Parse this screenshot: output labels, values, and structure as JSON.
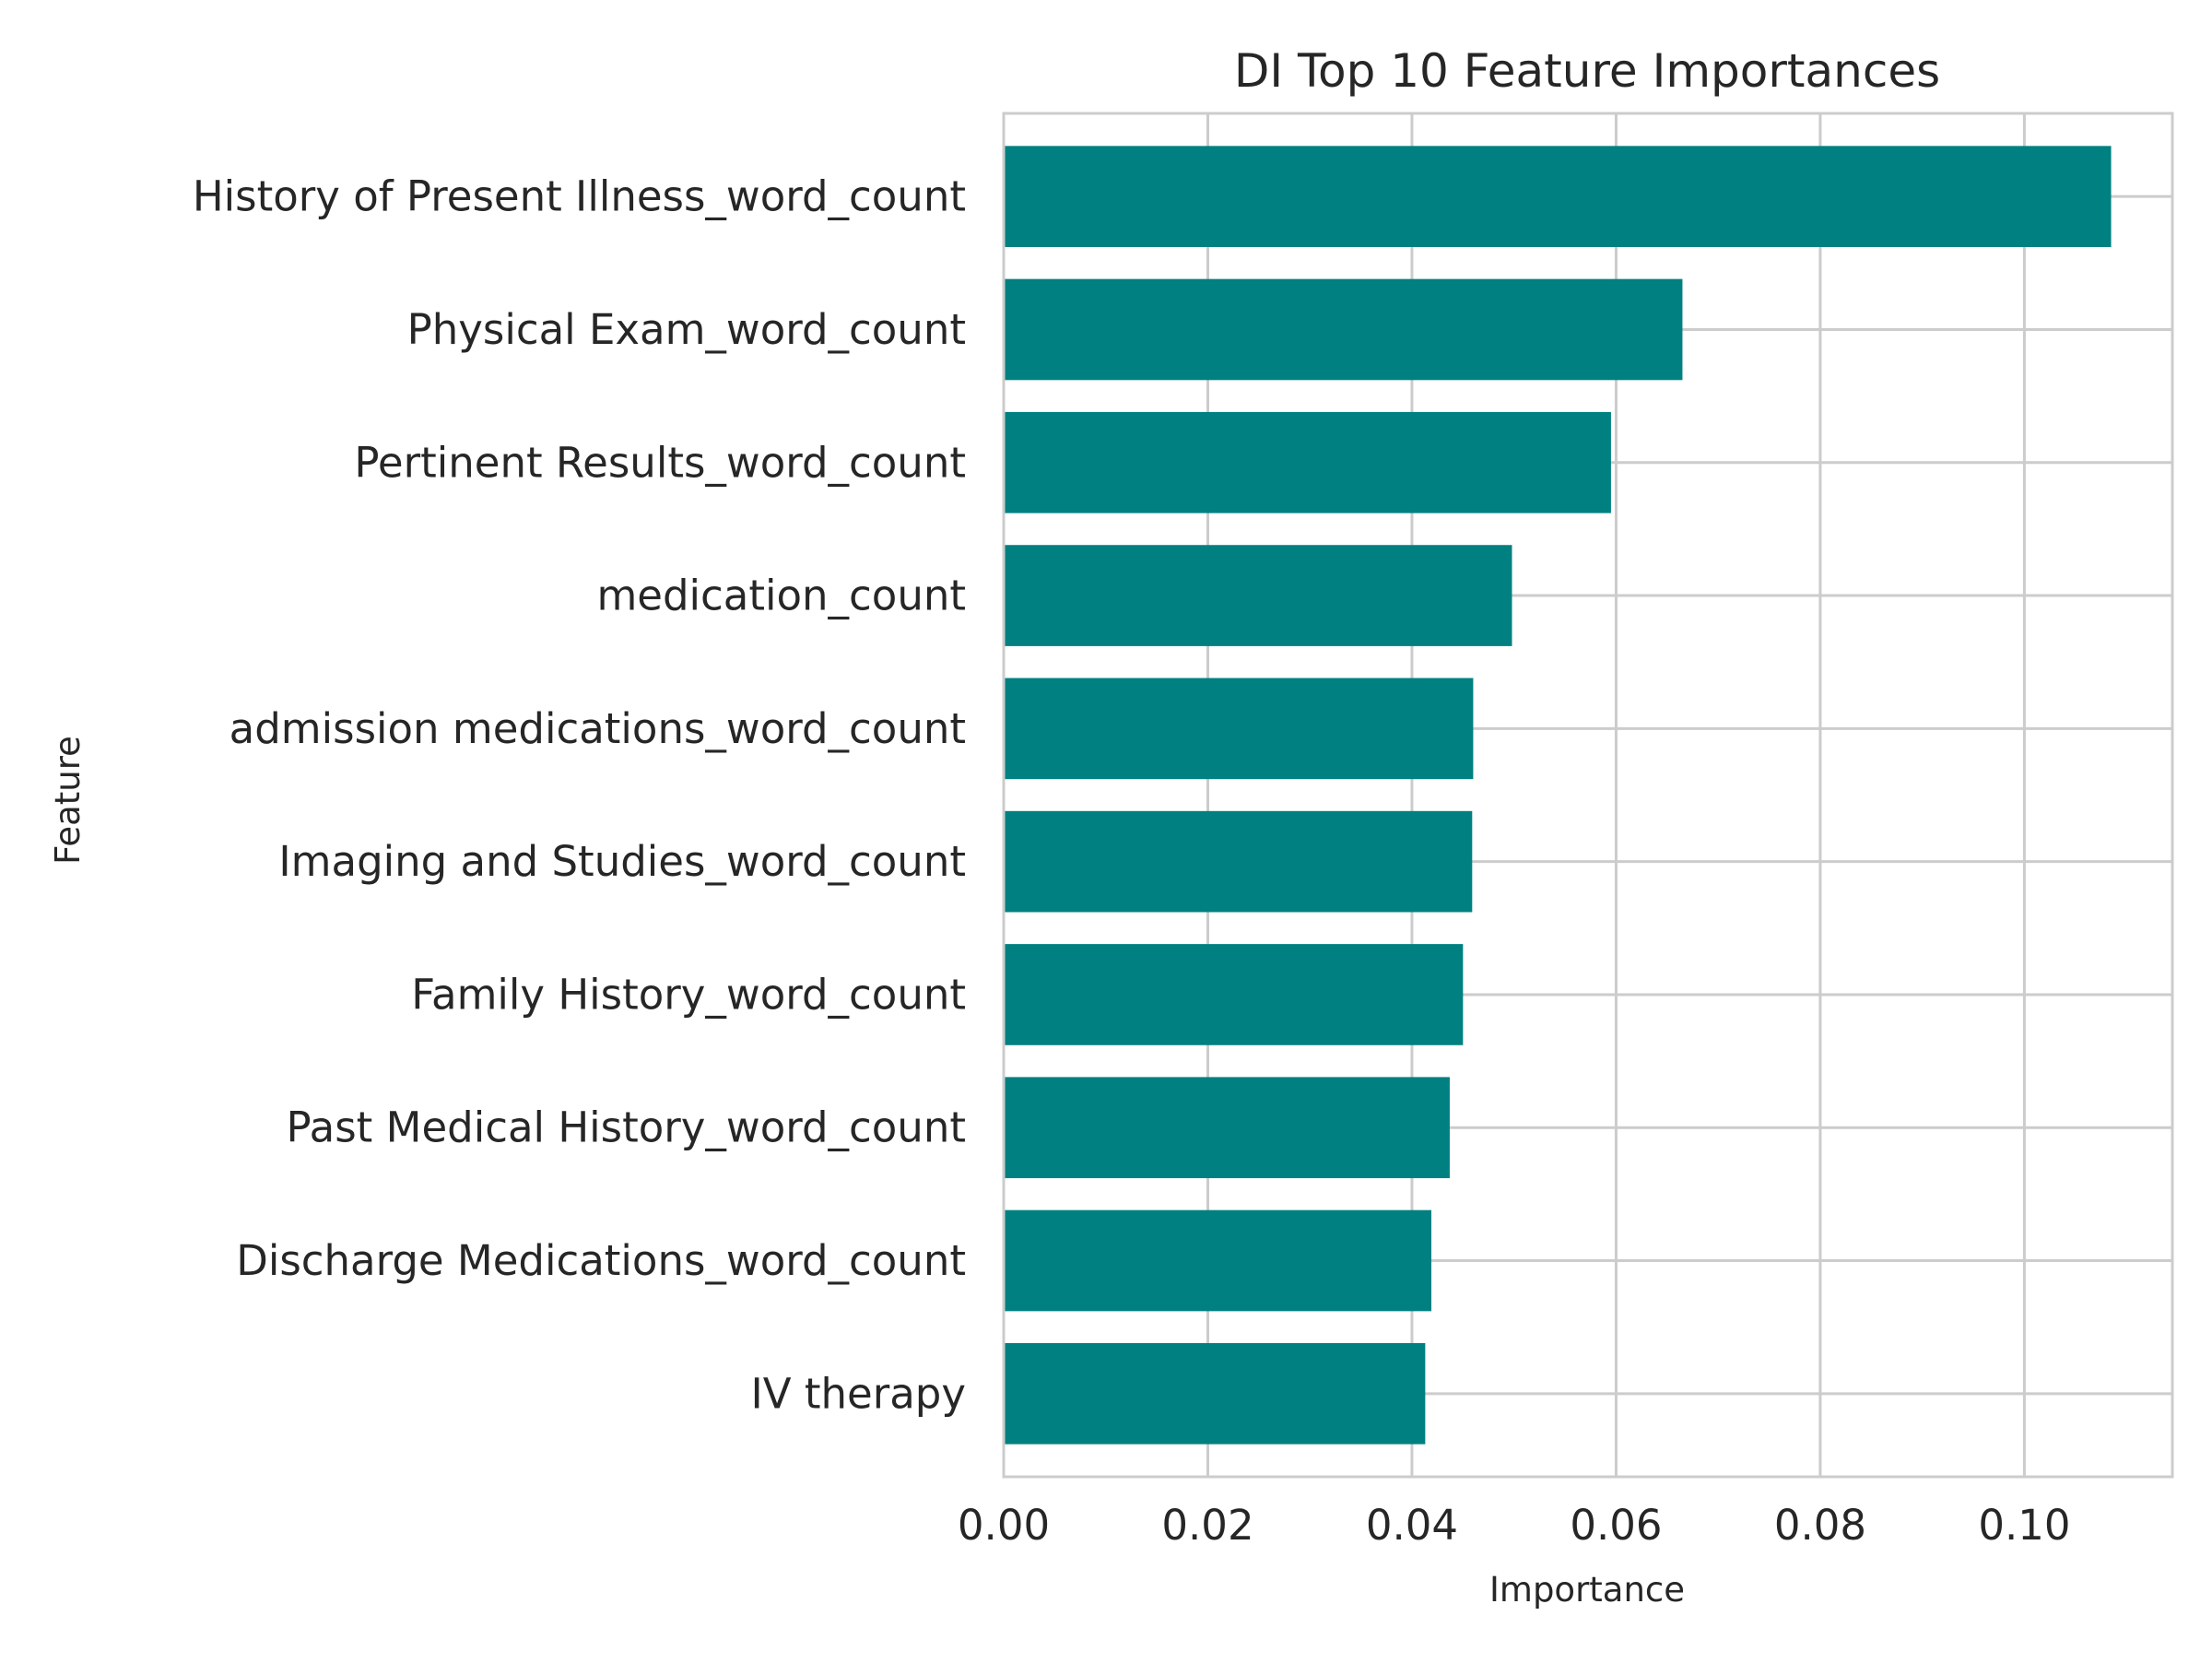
{
  "chart_data": {
    "type": "bar",
    "orientation": "horizontal",
    "title": "DI Top 10 Feature Importances",
    "xlabel": "Importance",
    "ylabel": "Feature",
    "categories": [
      "History of Present Illness_word_count",
      "Physical Exam_word_count",
      "Pertinent Results_word_count",
      "medication_count",
      "admission medications_word_count",
      "Imaging and Studies_word_count",
      "Family History_word_count",
      "Past Medical History_word_count",
      "Discharge Medications_word_count",
      "IV therapy"
    ],
    "values": [
      0.1085,
      0.0665,
      0.0595,
      0.0498,
      0.046,
      0.0459,
      0.045,
      0.0437,
      0.0419,
      0.0413
    ],
    "xlim": [
      0.0,
      0.1145
    ],
    "xticks": [
      0.0,
      0.02,
      0.04,
      0.06,
      0.08,
      0.1
    ],
    "xtick_labels": [
      "0.00",
      "0.02",
      "0.04",
      "0.06",
      "0.08",
      "0.10"
    ],
    "grid": true,
    "bar_color": "#008080",
    "grid_color": "#cccccc",
    "text_color": "#262626"
  }
}
